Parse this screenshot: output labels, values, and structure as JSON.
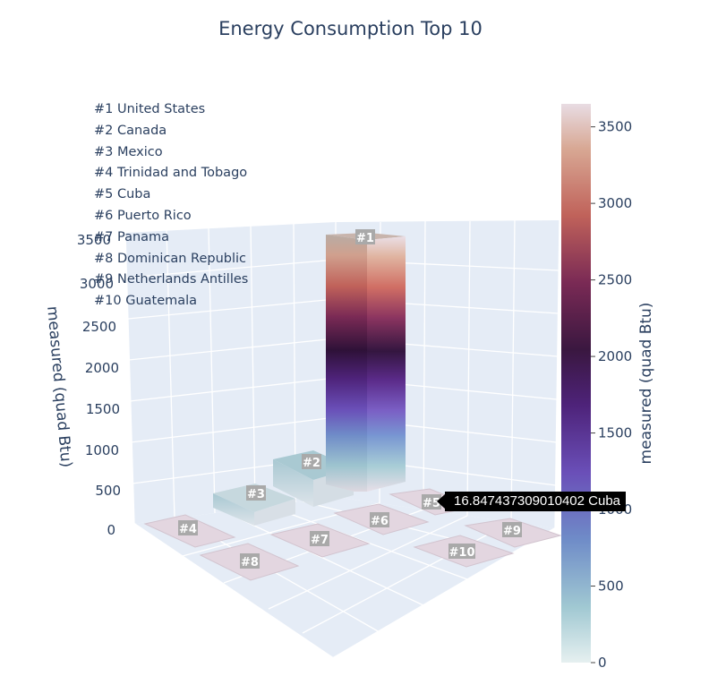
{
  "chart_data": {
    "type": "bar",
    "title": "Energy Consumption Top 10",
    "zlabel": "measured (quad Btu)",
    "zlim": [
      0,
      3600
    ],
    "z_ticks": [
      0,
      500,
      1000,
      1500,
      2000,
      2500,
      3000,
      3500
    ],
    "categories": [
      "#1",
      "#2",
      "#3",
      "#4",
      "#5",
      "#6",
      "#7",
      "#8",
      "#9",
      "#10"
    ],
    "countries": [
      "United States",
      "Canada",
      "Mexico",
      "Trinidad and Tobago",
      "Cuba",
      "Puerto Rico",
      "Panama",
      "Dominican Republic",
      "Netherlands Antilles",
      "Guatemala"
    ],
    "values": [
      3650,
      330,
      150,
      24,
      16.85,
      12,
      10,
      9,
      8,
      6
    ],
    "colorscale": "dense",
    "colorbar": {
      "title": "measured (quad Btu)",
      "range": [
        0,
        3650
      ],
      "ticks": [
        0,
        500,
        1000,
        1500,
        2000,
        2500,
        3000,
        3500
      ]
    },
    "hover": {
      "value": "16.847437309010402",
      "country": "Cuba"
    },
    "legend_position": "top-left"
  },
  "title": "Energy Consumption Top 10",
  "ranking": [
    "#1 United States",
    "#2 Canada",
    "#3 Mexico",
    "#4 Trinidad and Tobago",
    "#5 Cuba",
    "#6 Puerto Rico",
    "#7 Panama",
    "#8 Dominican Republic",
    "#9 Netherlands Antilles",
    "#10 Guatemala"
  ],
  "tooltip": "16.847437309010402 Cuba",
  "colors": {
    "pane": "#e5ecf6",
    "grid": "#ffffff",
    "text": "#2a3f5f",
    "label_box": "#a9a9a9",
    "tooltip_bg": "#000000"
  }
}
